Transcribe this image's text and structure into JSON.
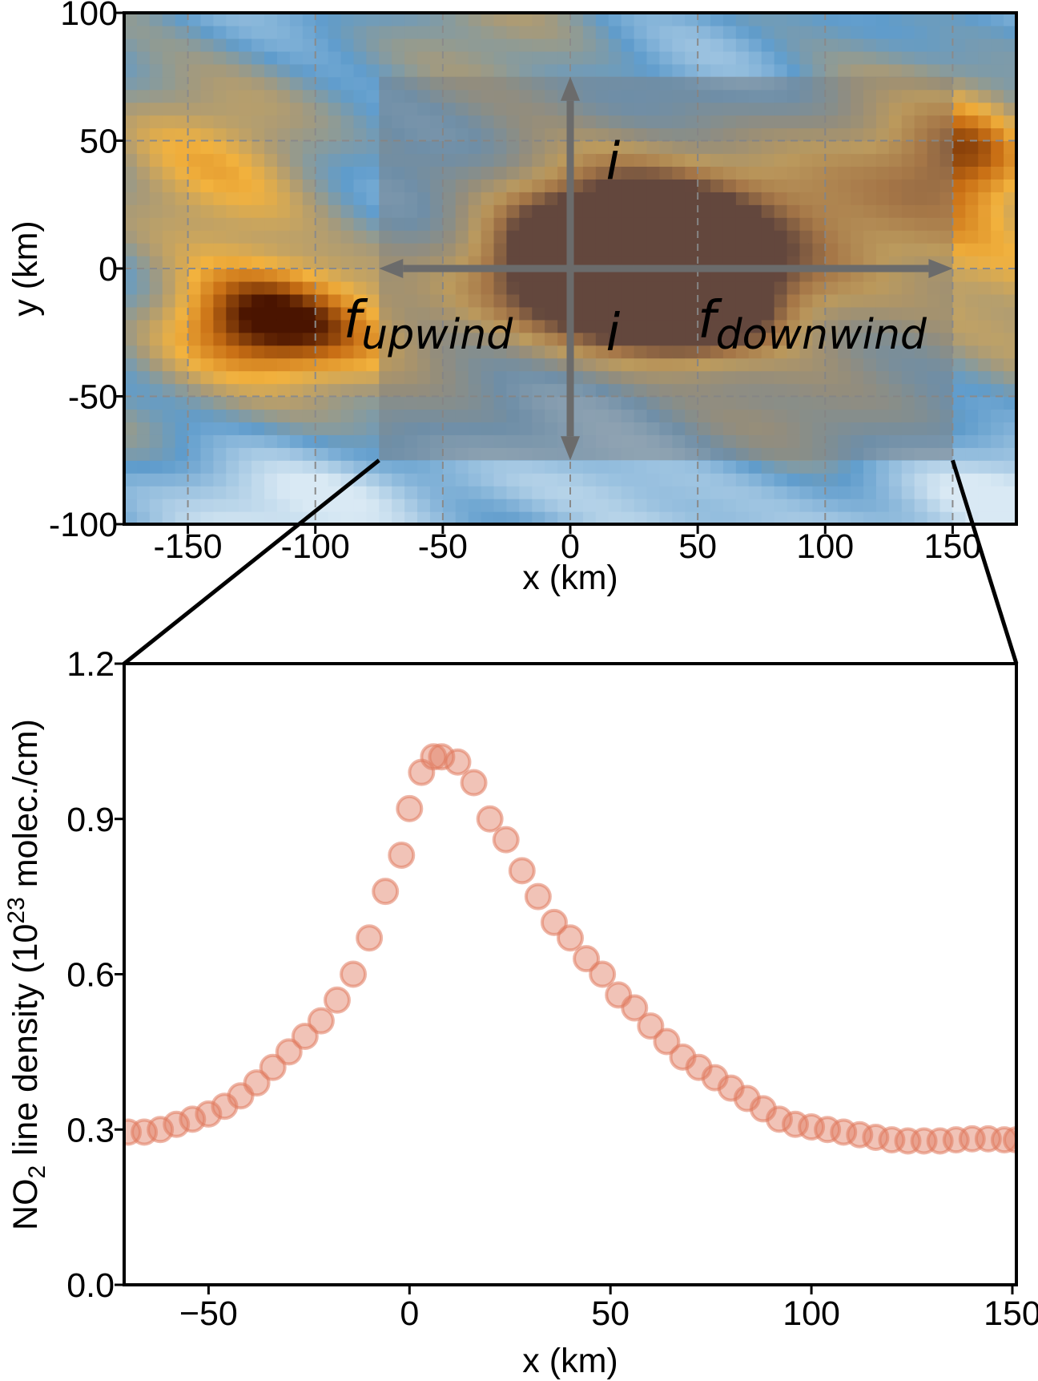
{
  "chart_data": [
    {
      "type": "heatmap",
      "xlabel": "x (km)",
      "ylabel": "y (km)",
      "xlim": [
        -175,
        175
      ],
      "ylim": [
        -100,
        100
      ],
      "xticks": [
        -150,
        -100,
        -50,
        0,
        50,
        100,
        150
      ],
      "yticks": [
        -100,
        -50,
        0,
        50,
        100
      ],
      "grid": true,
      "colormap": {
        "low": "#d9e9f4",
        "mid_low": "#5f9ccc",
        "mid": "#a89a78",
        "mid_high": "#f2b23e",
        "high": "#4a1400"
      },
      "plumes": [
        {
          "x": 15,
          "y": 2,
          "sx": 32,
          "sy": 20,
          "amp": 1.15,
          "note": "core"
        },
        {
          "x": 45,
          "y": -15,
          "sx": 22,
          "sy": 12,
          "amp": 0.85
        },
        {
          "x": 75,
          "y": 10,
          "sx": 70,
          "sy": 28,
          "amp": 0.6
        },
        {
          "x": -122,
          "y": -22,
          "sx": 30,
          "sy": 15,
          "amp": 0.62
        },
        {
          "x": 155,
          "y": 45,
          "sx": 20,
          "sy": 15,
          "amp": 0.35
        },
        {
          "x": -140,
          "y": 20,
          "sx": 35,
          "sy": 40,
          "amp": 0.2
        }
      ],
      "shaded_box": {
        "x": [
          -75,
          150
        ],
        "y": [
          -75,
          75
        ],
        "color": "#7f7f7f"
      },
      "arrows": {
        "horizontal": {
          "x": [
            -75,
            150
          ],
          "y": 0
        },
        "vertical": {
          "x": 0,
          "y": [
            -75,
            75
          ]
        },
        "color": "#6b6b6b"
      },
      "annotations": [
        {
          "text": "i",
          "x": 14,
          "y": 35,
          "size": "large"
        },
        {
          "text": "i",
          "x": 14,
          "y": -32,
          "size": "large"
        },
        {
          "text": "f",
          "sub": "upwind",
          "x": -89,
          "y": -27,
          "size": "large"
        },
        {
          "text": "f",
          "sub": "downwind",
          "x": 50,
          "y": -27,
          "size": "large"
        }
      ]
    },
    {
      "type": "scatter",
      "xlabel": "x (km)",
      "ylabel_prefix": "NO",
      "ylabel_sub": "2",
      "ylabel_mid": " line density (10",
      "ylabel_sup": "23",
      "ylabel_suffix": " molec./cm)",
      "xlim": [
        -71,
        151
      ],
      "ylim": [
        0,
        1.2
      ],
      "xticks": [
        -50,
        0,
        50,
        100,
        150
      ],
      "yticks": [
        "0.0",
        "0.3",
        "0.6",
        "0.9",
        "1.2"
      ],
      "marker_color": "#e07a5f",
      "marker_opacity": 0.45,
      "points": [
        {
          "x": -70,
          "y": 0.295
        },
        {
          "x": -66,
          "y": 0.295
        },
        {
          "x": -62,
          "y": 0.3
        },
        {
          "x": -58,
          "y": 0.31
        },
        {
          "x": -54,
          "y": 0.32
        },
        {
          "x": -50,
          "y": 0.33
        },
        {
          "x": -46,
          "y": 0.345
        },
        {
          "x": -42,
          "y": 0.365
        },
        {
          "x": -38,
          "y": 0.39
        },
        {
          "x": -34,
          "y": 0.42
        },
        {
          "x": -30,
          "y": 0.45
        },
        {
          "x": -26,
          "y": 0.48
        },
        {
          "x": -22,
          "y": 0.51
        },
        {
          "x": -18,
          "y": 0.55
        },
        {
          "x": -14,
          "y": 0.6
        },
        {
          "x": -10,
          "y": 0.67
        },
        {
          "x": -6,
          "y": 0.76
        },
        {
          "x": -2,
          "y": 0.83
        },
        {
          "x": 0,
          "y": 0.92
        },
        {
          "x": 3,
          "y": 0.99
        },
        {
          "x": 6,
          "y": 1.02
        },
        {
          "x": 8,
          "y": 1.02
        },
        {
          "x": 12,
          "y": 1.01
        },
        {
          "x": 16,
          "y": 0.97
        },
        {
          "x": 20,
          "y": 0.9
        },
        {
          "x": 24,
          "y": 0.86
        },
        {
          "x": 28,
          "y": 0.8
        },
        {
          "x": 32,
          "y": 0.75
        },
        {
          "x": 36,
          "y": 0.7
        },
        {
          "x": 40,
          "y": 0.67
        },
        {
          "x": 44,
          "y": 0.63
        },
        {
          "x": 48,
          "y": 0.6
        },
        {
          "x": 52,
          "y": 0.56
        },
        {
          "x": 56,
          "y": 0.535
        },
        {
          "x": 60,
          "y": 0.5
        },
        {
          "x": 64,
          "y": 0.47
        },
        {
          "x": 68,
          "y": 0.44
        },
        {
          "x": 72,
          "y": 0.42
        },
        {
          "x": 76,
          "y": 0.4
        },
        {
          "x": 80,
          "y": 0.38
        },
        {
          "x": 84,
          "y": 0.36
        },
        {
          "x": 88,
          "y": 0.34
        },
        {
          "x": 92,
          "y": 0.32
        },
        {
          "x": 96,
          "y": 0.31
        },
        {
          "x": 100,
          "y": 0.305
        },
        {
          "x": 104,
          "y": 0.3
        },
        {
          "x": 108,
          "y": 0.295
        },
        {
          "x": 112,
          "y": 0.29
        },
        {
          "x": 116,
          "y": 0.285
        },
        {
          "x": 120,
          "y": 0.28
        },
        {
          "x": 124,
          "y": 0.278
        },
        {
          "x": 128,
          "y": 0.278
        },
        {
          "x": 132,
          "y": 0.278
        },
        {
          "x": 136,
          "y": 0.28
        },
        {
          "x": 140,
          "y": 0.282
        },
        {
          "x": 144,
          "y": 0.282
        },
        {
          "x": 148,
          "y": 0.28
        },
        {
          "x": 151,
          "y": 0.28
        }
      ]
    }
  ]
}
